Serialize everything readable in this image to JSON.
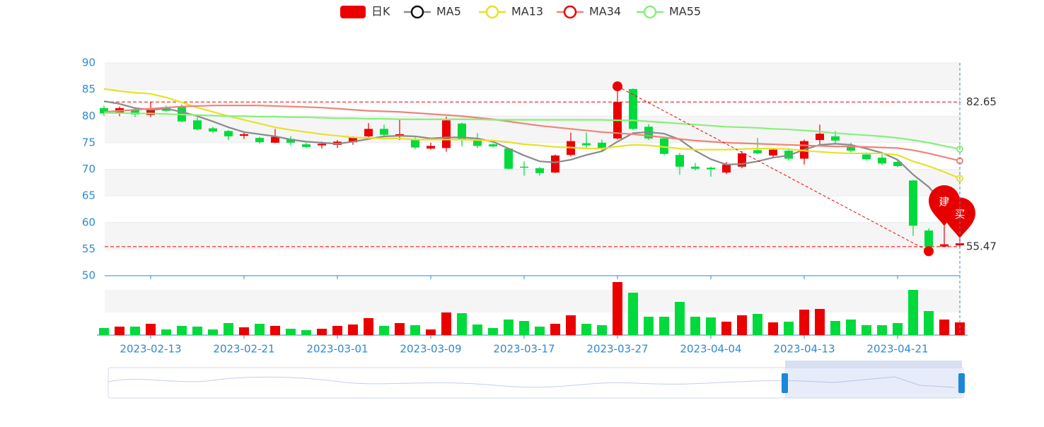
{
  "chart_data": {
    "type": "candlestick",
    "categories": [
      null,
      null,
      null,
      "2023-02-13",
      null,
      null,
      null,
      null,
      null,
      "2023-02-21",
      null,
      null,
      null,
      null,
      null,
      "2023-03-01",
      null,
      null,
      null,
      null,
      null,
      "2023-03-09",
      null,
      null,
      null,
      null,
      null,
      "2023-03-17",
      null,
      null,
      null,
      null,
      null,
      "2023-03-27",
      null,
      null,
      null,
      null,
      null,
      "2023-04-04",
      null,
      null,
      null,
      null,
      null,
      "2023-04-13",
      null,
      null,
      null,
      null,
      null,
      "2023-04-21",
      null,
      null,
      null,
      null
    ],
    "series": [
      {
        "name": "日K",
        "color": "#eb0000",
        "down_color": "#00da3c",
        "values": [
          [
            81.5,
            80.5,
            80,
            82
          ],
          [
            80.5,
            81.5,
            80,
            81.8
          ],
          [
            81.3,
            80.3,
            79.8,
            81.5
          ],
          [
            80.2,
            81.3,
            79.8,
            82.7
          ],
          [
            81.7,
            81.0,
            80.8,
            82
          ],
          [
            81.8,
            79.0,
            78.8,
            82.2
          ],
          [
            79.2,
            77.5,
            77.3,
            79.8
          ],
          [
            77.7,
            77.1,
            76.8,
            78
          ],
          [
            77.2,
            76.2,
            75.5,
            77.4
          ],
          [
            76.3,
            76.6,
            75.7,
            77
          ],
          [
            75.9,
            75.1,
            74.8,
            76.1
          ],
          [
            75.0,
            76.1,
            74.9,
            77.6
          ],
          [
            75.7,
            75.0,
            74.5,
            76.2
          ],
          [
            74.7,
            74.2,
            74,
            75
          ],
          [
            74.5,
            74.8,
            73.9,
            75.2
          ],
          [
            74.6,
            75.2,
            74,
            75.5
          ],
          [
            75.1,
            76.0,
            74.6,
            76.2
          ],
          [
            76.2,
            77.6,
            75.9,
            78.7
          ],
          [
            77.6,
            76.5,
            76,
            78.4
          ],
          [
            76.3,
            76.6,
            75.5,
            79.5
          ],
          [
            75.7,
            74.1,
            73.8,
            76
          ],
          [
            73.9,
            74.4,
            73.7,
            75
          ],
          [
            74.0,
            79.2,
            73.3,
            79.9
          ],
          [
            78.6,
            75.5,
            74.3,
            78.8
          ],
          [
            75.5,
            74.4,
            74,
            76.8
          ],
          [
            74.7,
            74.3,
            74.1,
            74.9
          ],
          [
            73.9,
            70.1,
            70,
            74
          ],
          [
            70.5,
            70.3,
            68.8,
            71.5
          ],
          [
            70.2,
            69.3,
            68.8,
            70.5
          ],
          [
            69.4,
            72.6,
            69.3,
            72.8
          ],
          [
            72.7,
            75.3,
            72.4,
            76.9
          ],
          [
            74.9,
            74.5,
            73.8,
            76.9
          ],
          [
            75.0,
            73.8,
            73.3,
            75.6
          ],
          [
            75.8,
            82.65,
            75.6,
            85.6
          ],
          [
            85.1,
            77.6,
            77.4,
            85.2
          ],
          [
            78.0,
            75.8,
            75.5,
            78.5
          ],
          [
            75.8,
            72.9,
            72.6,
            76
          ],
          [
            72.7,
            70.5,
            69,
            73.1
          ],
          [
            70.5,
            70.1,
            69.8,
            71.2
          ],
          [
            70.3,
            70.0,
            68.6,
            70.5
          ],
          [
            69.4,
            70.9,
            69.1,
            71.4
          ],
          [
            70.5,
            73.0,
            70.2,
            73.4
          ],
          [
            73.6,
            73.0,
            72.8,
            75.9
          ],
          [
            72.6,
            73.7,
            72.3,
            74
          ],
          [
            73.5,
            72.0,
            71.6,
            74
          ],
          [
            72.0,
            75.3,
            70.9,
            75.6
          ],
          [
            75.5,
            76.7,
            74.6,
            78.4
          ],
          [
            76.2,
            75.4,
            74.9,
            77.2
          ],
          [
            74.3,
            73.5,
            73.2,
            75
          ],
          [
            72.8,
            71.9,
            71.6,
            73.2
          ],
          [
            72.2,
            71.1,
            70.8,
            73
          ],
          [
            71.4,
            70.6,
            70.4,
            71.8
          ],
          [
            67.9,
            59.4,
            57.5,
            68
          ],
          [
            58.5,
            55.47,
            54.6,
            58.9
          ],
          [
            55.5,
            55.9,
            55.4,
            59.3
          ],
          [
            55.7,
            56.1,
            55.4,
            57
          ]
        ]
      },
      {
        "name": "MA5",
        "color": "#8a8a8a",
        "values": [
          82.8,
          82.3,
          81.5,
          81.2,
          81.4,
          80.8,
          80.0,
          79.0,
          77.9,
          77.0,
          76.6,
          76.2,
          75.6,
          75.2,
          75.0,
          74.8,
          75.2,
          75.7,
          76.2,
          76.3,
          76.2,
          75.8,
          76.0,
          76.0,
          75.8,
          75.2,
          73.9,
          72.6,
          71.5,
          71.3,
          71.8,
          72.7,
          73.4,
          75.2,
          76.8,
          77.0,
          76.7,
          75.6,
          73.5,
          71.9,
          70.9,
          71.0,
          71.5,
          72.2,
          72.6,
          73.7,
          74.6,
          74.8,
          74.6,
          73.9,
          73.1,
          71.8,
          69.0,
          66.7,
          63.3,
          59.3
        ]
      },
      {
        "name": "MA13",
        "color": "#e8e02a",
        "values": [
          85.1,
          84.7,
          84.4,
          84.2,
          83.5,
          82.6,
          81.6,
          80.8,
          80.0,
          79.3,
          78.6,
          77.9,
          77.4,
          77.0,
          76.6,
          76.3,
          76.0,
          75.9,
          75.8,
          75.8,
          75.6,
          75.6,
          75.6,
          75.6,
          75.5,
          75.4,
          75.1,
          74.7,
          74.5,
          74.2,
          74.1,
          73.9,
          73.9,
          74.3,
          74.6,
          74.5,
          74.2,
          73.9,
          73.7,
          73.7,
          73.7,
          73.8,
          73.9,
          73.9,
          73.8,
          73.5,
          73.3,
          73.1,
          73.0,
          73.0,
          73.0,
          72.7,
          71.5,
          70.6,
          69.5,
          68.3
        ]
      },
      {
        "name": "MA34",
        "color": "#f08379",
        "values": [
          80.8,
          81.0,
          81.2,
          81.4,
          81.6,
          81.8,
          81.9,
          82.0,
          82.0,
          82.0,
          82.0,
          81.9,
          81.8,
          81.7,
          81.6,
          81.4,
          81.2,
          81.0,
          80.9,
          80.8,
          80.6,
          80.4,
          80.2,
          80.0,
          79.7,
          79.4,
          79.0,
          78.6,
          78.2,
          77.9,
          77.6,
          77.3,
          77.0,
          76.8,
          76.6,
          76.3,
          76.0,
          75.7,
          75.4,
          75.2,
          75.0,
          74.9,
          74.8,
          74.7,
          74.6,
          74.5,
          74.4,
          74.3,
          74.3,
          74.2,
          74.1,
          74.0,
          73.6,
          73.0,
          72.3,
          71.6
        ]
      },
      {
        "name": "MA55",
        "color": "#86f07a",
        "values": [
          80.6,
          80.6,
          80.5,
          80.5,
          80.4,
          80.3,
          80.2,
          80.1,
          80.0,
          80.0,
          79.9,
          79.9,
          79.8,
          79.8,
          79.7,
          79.6,
          79.6,
          79.5,
          79.5,
          79.4,
          79.4,
          79.4,
          79.4,
          79.4,
          79.4,
          79.3,
          79.3,
          79.3,
          79.3,
          79.3,
          79.3,
          79.3,
          79.3,
          79.2,
          79.2,
          79.0,
          78.8,
          78.6,
          78.4,
          78.2,
          78.0,
          77.9,
          77.8,
          77.6,
          77.5,
          77.3,
          77.1,
          76.8,
          76.6,
          76.4,
          76.2,
          75.9,
          75.5,
          75.0,
          74.4,
          73.8
        ]
      }
    ],
    "volume": {
      "values": [
        10,
        12,
        12,
        16,
        8,
        13,
        12,
        8,
        17,
        11,
        16,
        13,
        9,
        7,
        9,
        13,
        15,
        24,
        13,
        17,
        14,
        8,
        32,
        31,
        15,
        10,
        22,
        20,
        12,
        16,
        28,
        16,
        14,
        75,
        60,
        26,
        26,
        47,
        26,
        25,
        19,
        28,
        30,
        18,
        19,
        36,
        37,
        20,
        22,
        14,
        14,
        17,
        64,
        34,
        22,
        18
      ],
      "ylim": [
        0,
        80
      ]
    },
    "ylim": [
      50,
      90
    ],
    "yticks": [
      50,
      55,
      60,
      65,
      70,
      75,
      80,
      85,
      90
    ],
    "grid": true,
    "mark_lines": [
      82.65,
      55.47
    ],
    "annotations": [
      "建",
      "买"
    ],
    "legend": "top"
  }
}
